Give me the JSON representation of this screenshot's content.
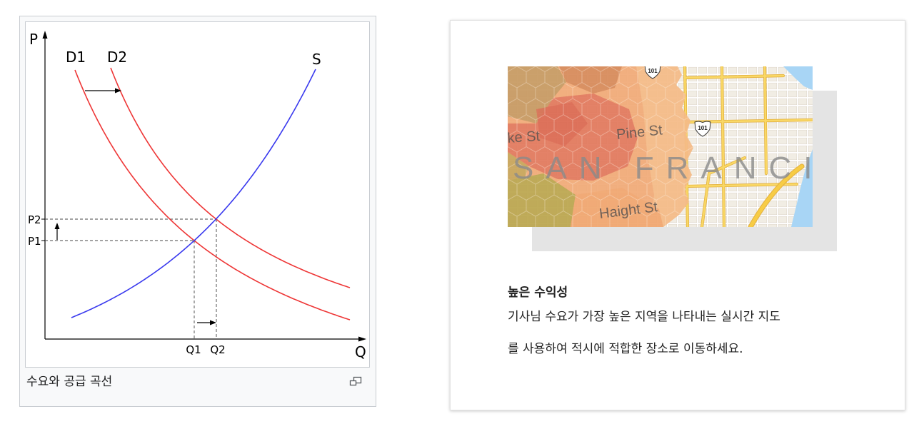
{
  "figure": {
    "caption": "수요와 공급 곡선",
    "enlarge_icon": "magnify-clip-icon",
    "diagram": {
      "y_axis_label": "P",
      "x_axis_label": "Q",
      "curves": {
        "d1": "D1",
        "d2": "D2",
        "s": "S"
      },
      "price_levels": {
        "p1": "P1",
        "p2": "P2"
      },
      "quantity_levels": {
        "q1": "Q1",
        "q2": "Q2"
      }
    }
  },
  "card": {
    "map": {
      "labels": {
        "street_left": "ke St",
        "street_middle": "Pine St",
        "street_bottom": "Haight St",
        "city": "SAN FRANCI",
        "highway_top": "101",
        "highway_right": "101"
      }
    },
    "title": "높은 수익성",
    "description_lines": [
      "기사님 수요가 가장 높은 지역을 나타내는 실시간 지도",
      "를 사용하여 적시에 적합한 장소로 이동하세요."
    ]
  },
  "colors": {
    "demand_curve": "#ee3535",
    "supply_curve": "#3838ee",
    "map_water": "#a8d5f5",
    "heat_high": "#e3795d",
    "heat_low": "#f2ab78",
    "arterial_road": "#f9d866"
  }
}
